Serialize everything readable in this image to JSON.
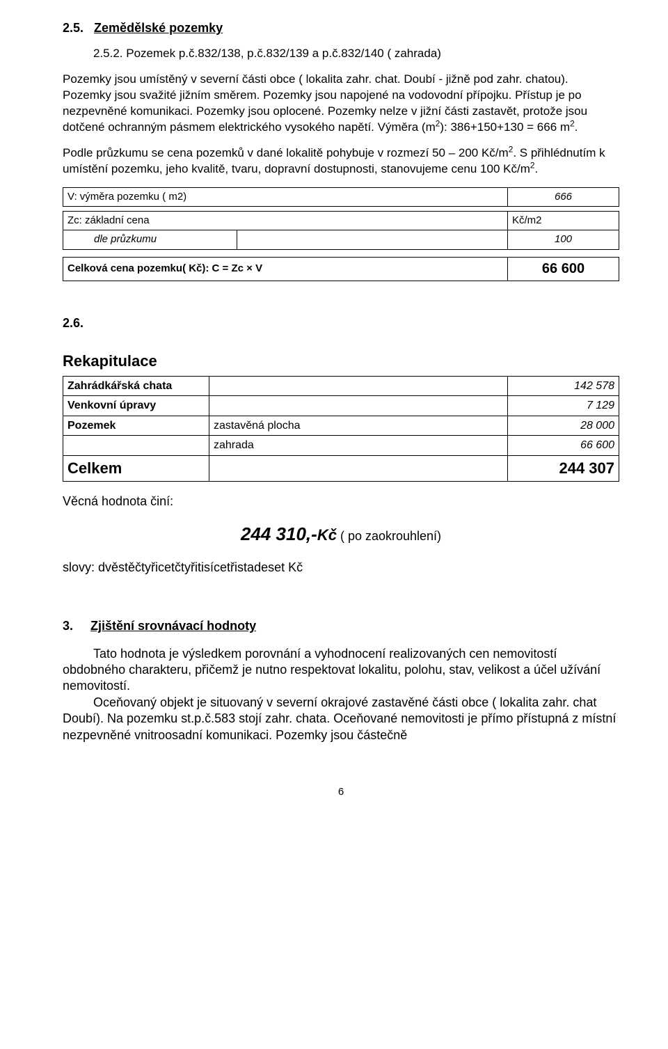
{
  "section25": {
    "number": "2.5.",
    "title": "Zemědělské pozemky",
    "sub": "2.5.2. Pozemek p.č.832/138, p.č.832/139 a p.č.832/140 ( zahrada)",
    "para1": "Pozemky jsou umístěný v severní části obce ( lokalita zahr. chat. Doubí - jižně pod zahr. chatou). Pozemky jsou svažité jižním směrem. Pozemky jsou napojené na vodovodní přípojku. Přístup je po nezpevněné komunikaci. Pozemky jsou oplocené. Pozemky nelze v jižní části zastavět, protože jsou dotčené ochranným pásmem elektrického vysokého napětí. Výměra (m",
    "para1_end": "): 386+150+130 = 666 m",
    "para2": "Podle průzkumu se cena pozemků v dané lokalitě pohybuje v rozmezí 50 – 200 Kč/m",
    "para2_end": ". S přihlédnutím k umístění pozemku, jeho kvalitě, tvaru, dopravní dostupnosti, stanovujeme cenu 100 Kč/m",
    "v_row": {
      "label": "V: výměra pozemku ( m2)",
      "value": "666"
    },
    "zc_row1": {
      "label": "Zc: základní cena",
      "unit": "Kč/m2"
    },
    "zc_row2": {
      "label": "dle průzkumu",
      "value": "100"
    },
    "total_row": {
      "label": "Celková cena pozemku( Kč):  C = Zc × V",
      "value": "66 600"
    }
  },
  "section26": {
    "number": "2.6.",
    "title": "Rekapitulace",
    "rows": [
      {
        "c1": "Zahrádkářská chata",
        "c2": "",
        "c3": "142 578"
      },
      {
        "c1": "Venkovní úpravy",
        "c2": "",
        "c3": "7 129"
      },
      {
        "c1": "Pozemek",
        "c2": "zastavěná plocha",
        "c3": "28 000"
      },
      {
        "c1": "",
        "c2": "zahrada",
        "c3": "66 600"
      }
    ],
    "celkem": {
      "c1": "Celkem",
      "c2": "",
      "c3": "244 307"
    },
    "vecna": "Věcná hodnota činí:",
    "price": "244 310,-",
    "price_kc": "Kč",
    "price_paren": " ( po zaokrouhlení)",
    "slovy": "slovy: dvěstěčtyřicetčtyřitisícetřistadeset Kč"
  },
  "section3": {
    "number": "3.",
    "title": "Zjištění srovnávací hodnoty",
    "para": "Tato hodnota je výsledkem porovnání a vyhodnocení realizovaných cen nemovitostí obdobného charakteru, přičemž je nutno respektovat lokalitu, polohu, stav, velikost a účel užívání nemovitostí.",
    "para2": "Oceňovaný objekt je situovaný v severní okrajové zastavěné části obce ( lokalita zahr. chat Doubí). Na pozemku st.p.č.583 stojí zahr. chata. Oceňované nemovitosti je přímo přístupná z místní nezpevněné vnitroosadní komunikaci. Pozemky jsou částečně"
  },
  "page_number": "6"
}
